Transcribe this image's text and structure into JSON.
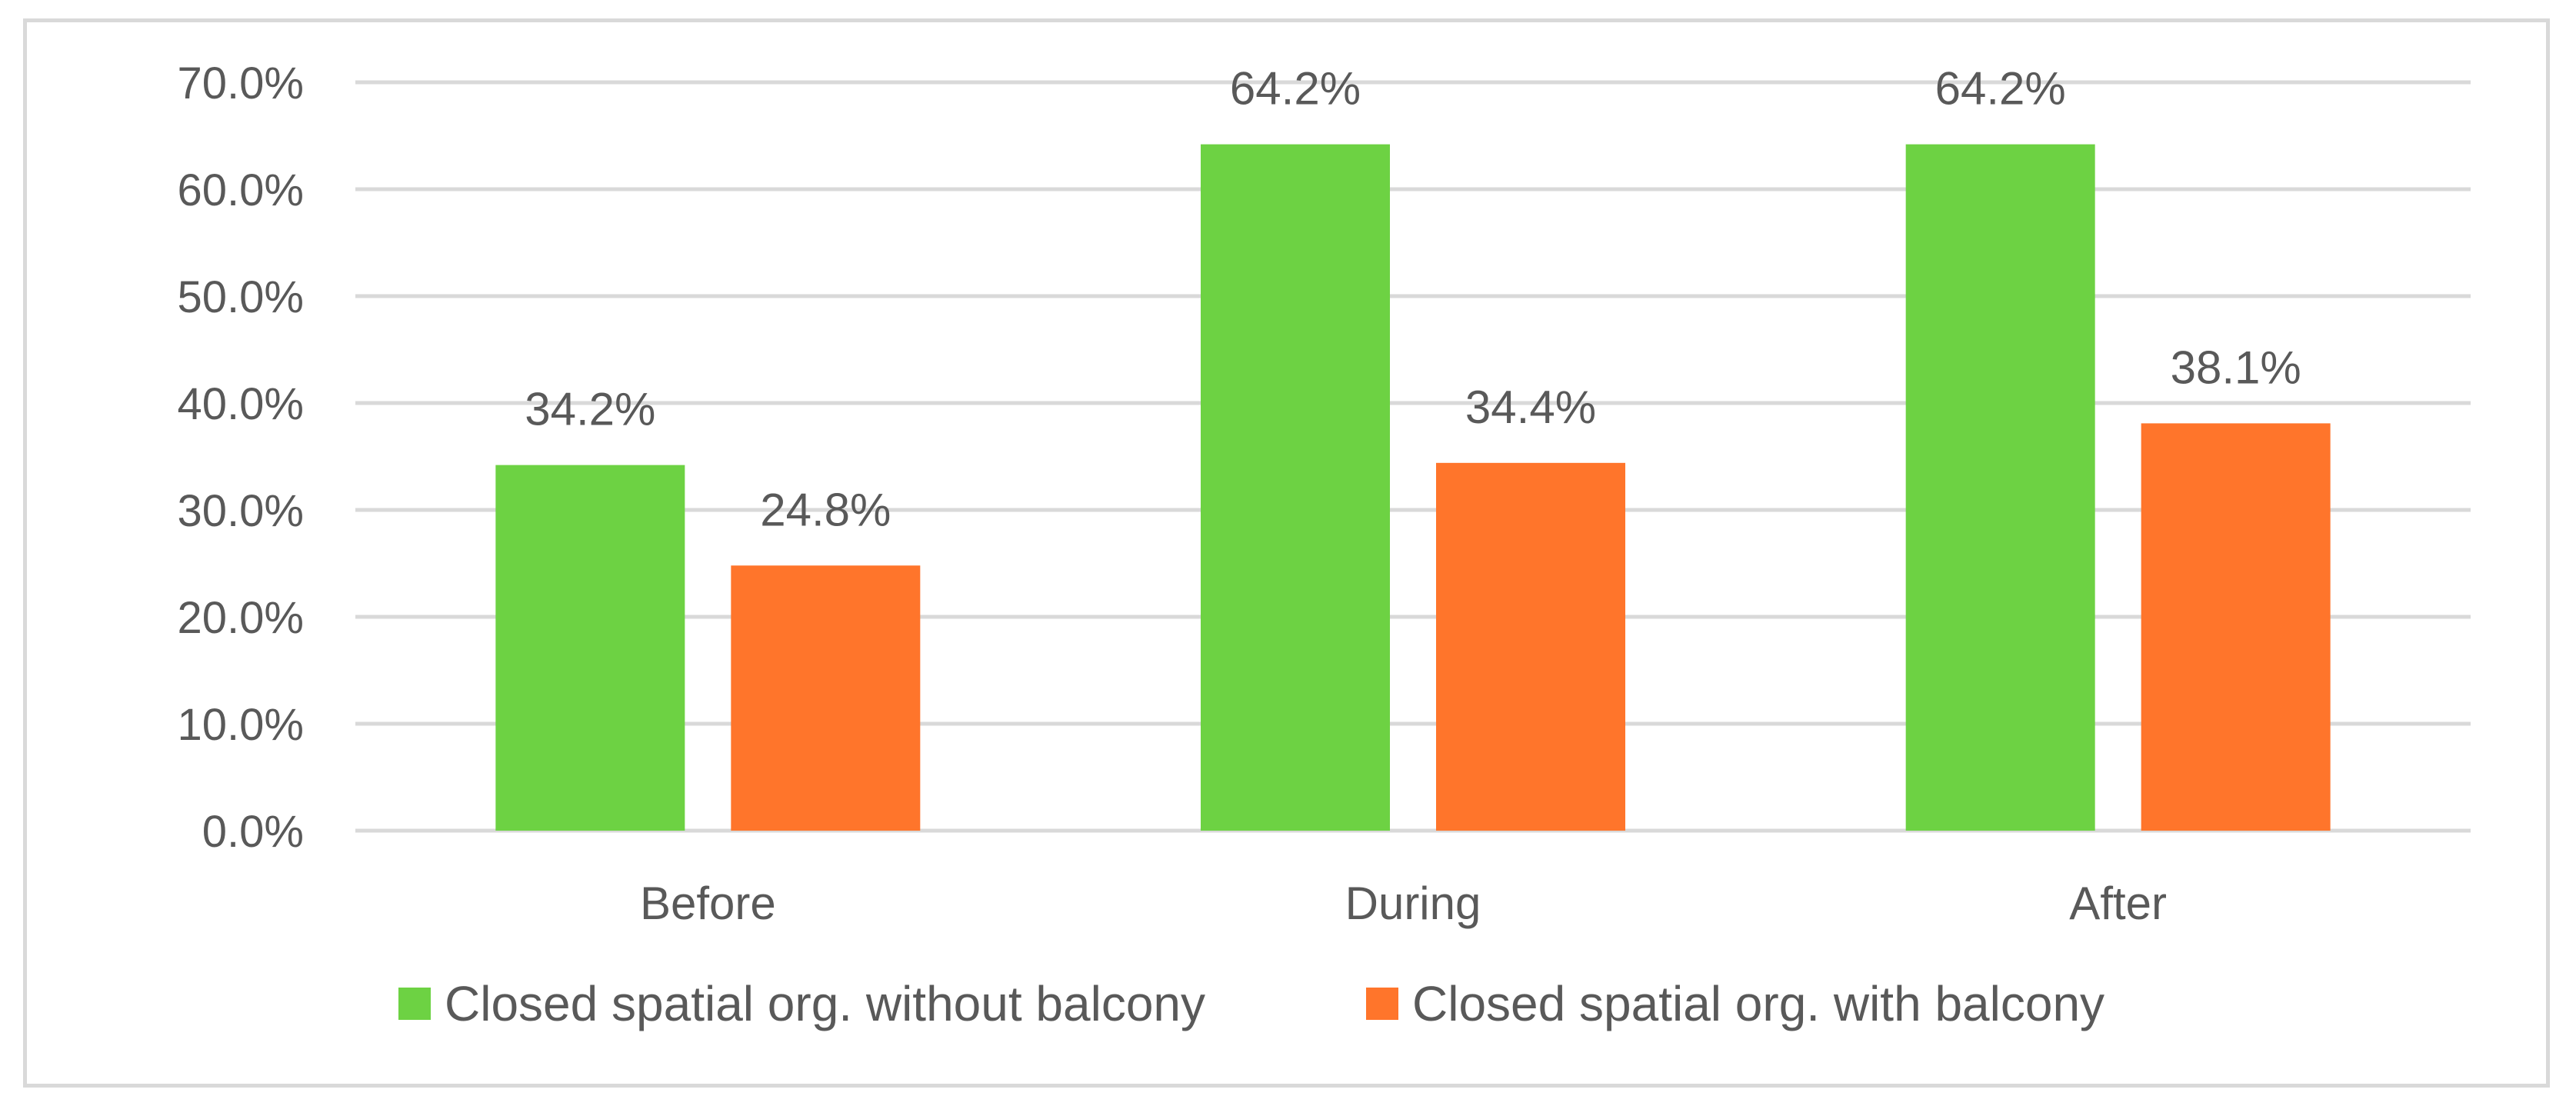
{
  "chart_data": {
    "type": "bar",
    "title": "",
    "xlabel": "",
    "ylabel": "",
    "categories": [
      "Before",
      "During",
      "After"
    ],
    "series": [
      {
        "name": "Closed spatial org. without balcony",
        "color": "#6dd243",
        "values": [
          34.2,
          64.2,
          64.2
        ],
        "labels": [
          "34.2%",
          "64.2%",
          "64.2%"
        ]
      },
      {
        "name": "Closed spatial org. with balcony",
        "color": "#ff752b",
        "values": [
          24.8,
          34.4,
          38.1
        ],
        "labels": [
          "24.8%",
          "34.4%",
          "38.1%"
        ]
      }
    ],
    "ylim": [
      0,
      70
    ],
    "yticks": [
      0,
      10,
      20,
      30,
      40,
      50,
      60,
      70
    ],
    "ytick_labels": [
      "0.0%",
      "10.0%",
      "20.0%",
      "30.0%",
      "40.0%",
      "50.0%",
      "60.0%",
      "70.0%"
    ],
    "grid": true,
    "legend": "bottom"
  }
}
